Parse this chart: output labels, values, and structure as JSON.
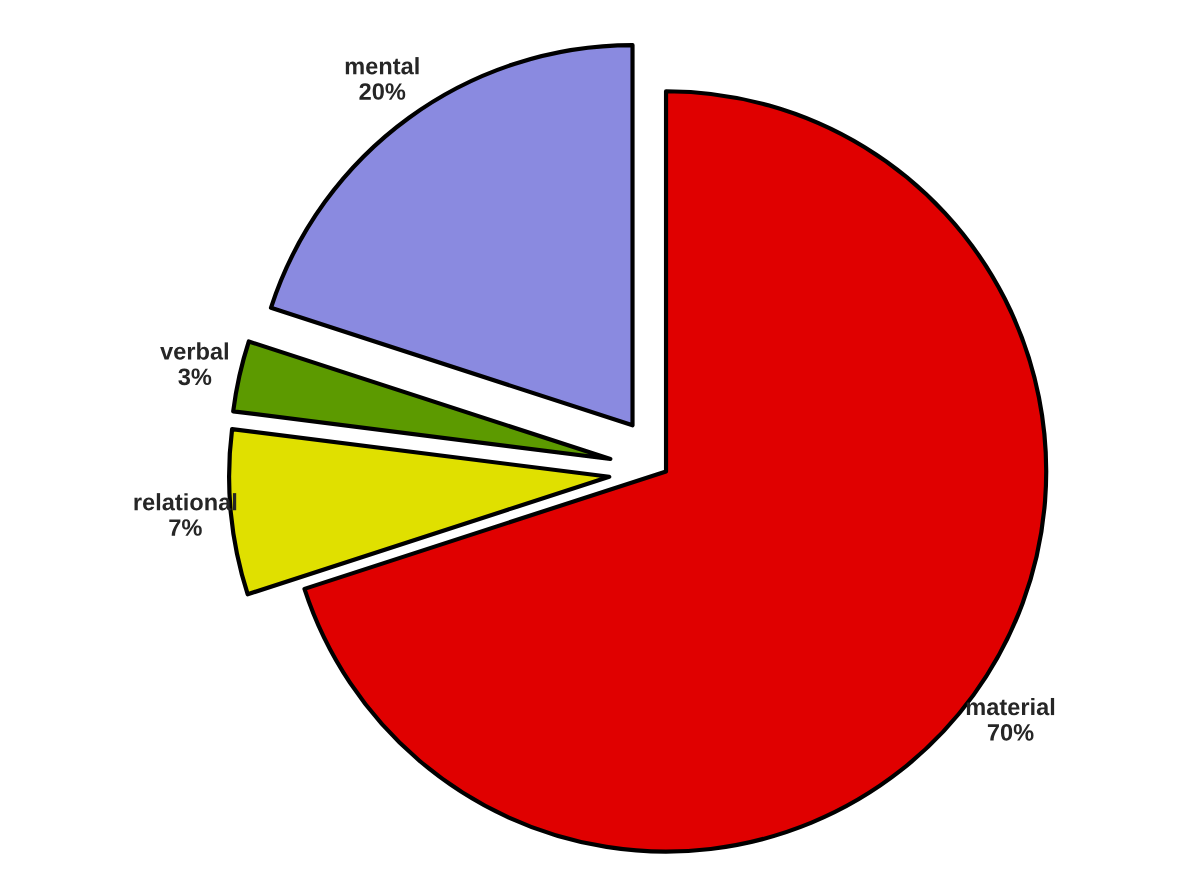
{
  "chart_data": {
    "type": "pie",
    "categories": [
      "material",
      "relational",
      "verbal",
      "mental"
    ],
    "values": [
      70,
      7,
      3,
      20
    ],
    "value_labels": [
      "70%",
      "7%",
      "3%",
      "20%"
    ],
    "colors": [
      "#e00000",
      "#e0e000",
      "#5c9a00",
      "#8a8ae0"
    ]
  }
}
